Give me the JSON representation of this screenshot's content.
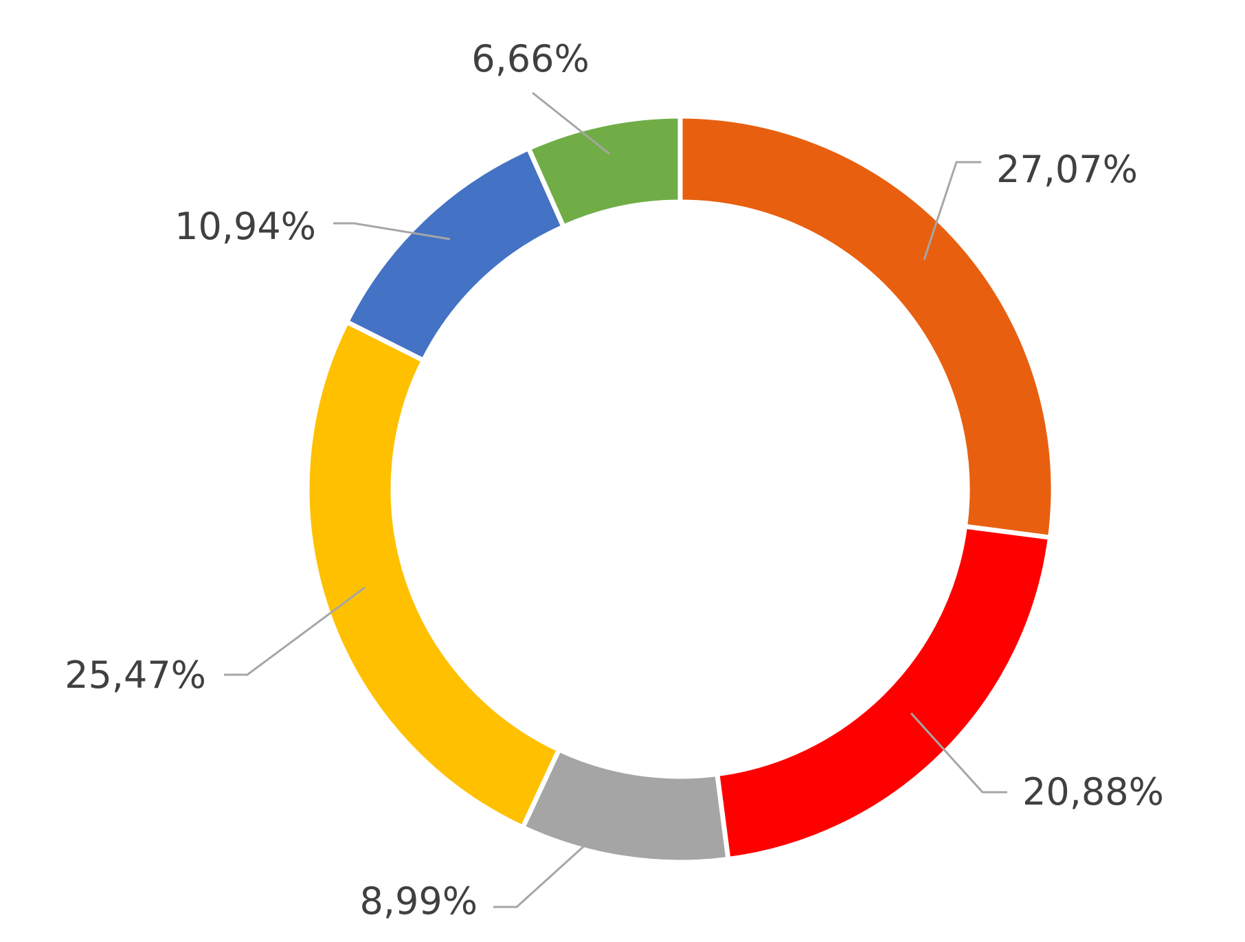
{
  "chart_data": {
    "type": "pie",
    "variant": "donut",
    "categories": [
      "",
      "",
      "",
      "",
      "",
      ""
    ],
    "values": [
      27.07,
      20.88,
      8.99,
      25.47,
      10.94,
      6.66
    ],
    "value_labels": [
      "27,07%",
      "20,88%",
      "8,99%",
      "25,47%",
      "10,94%",
      "6,66%"
    ],
    "colors": [
      "#E8600F",
      "#FF0000",
      "#A5A5A5",
      "#FFC000",
      "#4472C4",
      "#70AD47"
    ],
    "title": "",
    "legend": "none"
  }
}
